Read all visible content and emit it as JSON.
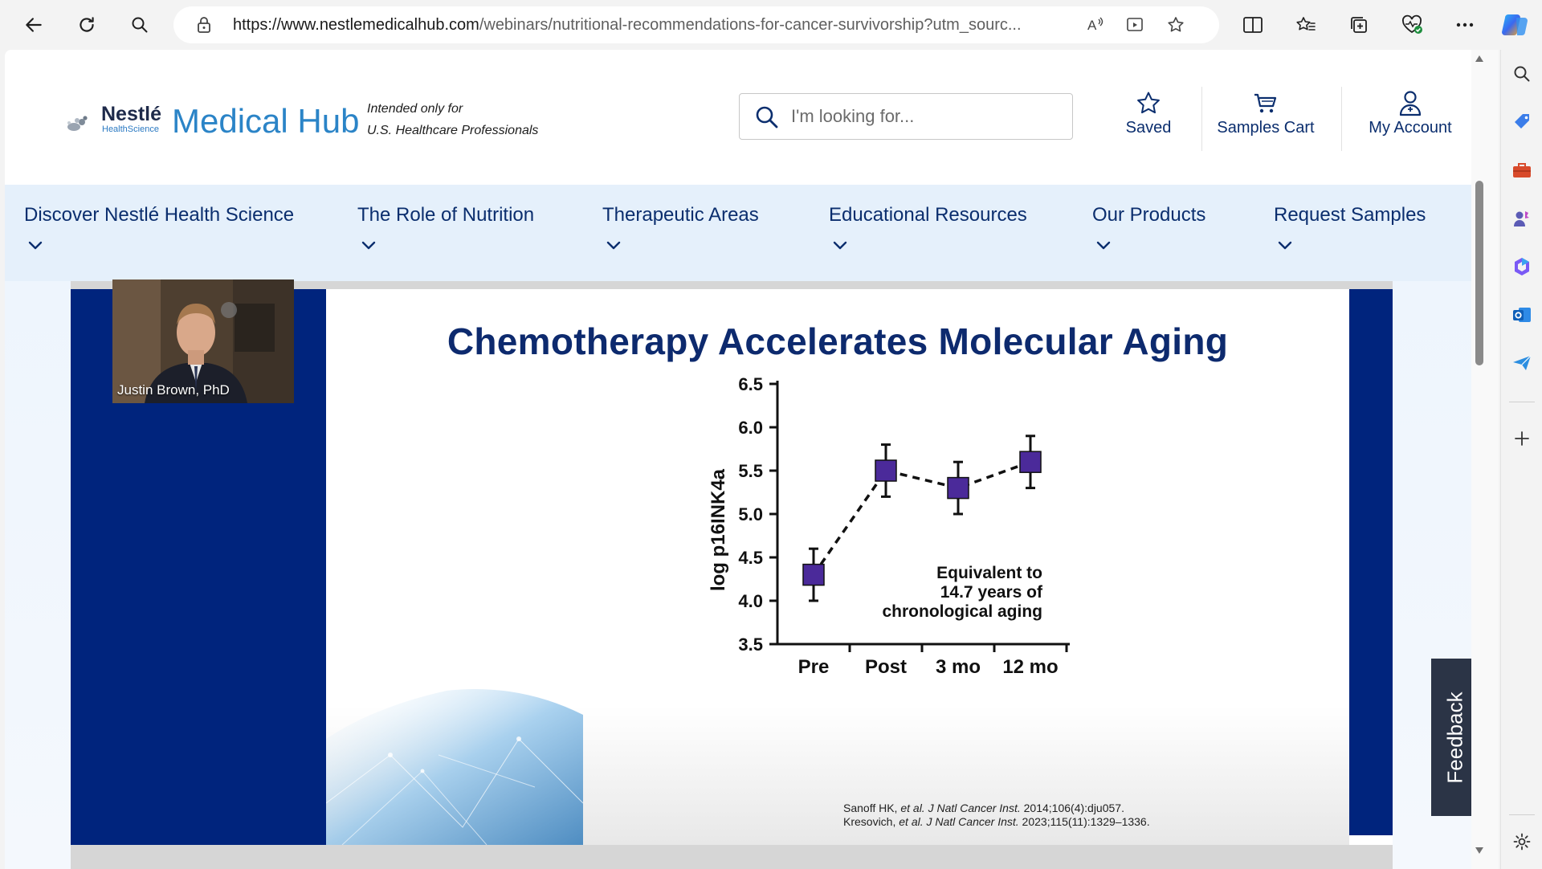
{
  "browser": {
    "url_domain": "https://www.nestlemedicalhub.com",
    "url_path": "/webinars/nutritional-recommendations-for-cancer-survivorship?utm_sourc..."
  },
  "header": {
    "logo_brand": "Nestlé",
    "logo_sub": "HealthScience",
    "logo_title": "Medical Hub",
    "intended_line1": "Intended only for",
    "intended_line2": "U.S. Healthcare Professionals",
    "search_placeholder": "I'm looking for...",
    "actions": {
      "saved": "Saved",
      "cart": "Samples Cart",
      "account": "My Account"
    }
  },
  "nav": {
    "items": [
      "Discover Nestlé Health Science",
      "The Role of Nutrition",
      "Therapeutic Areas",
      "Educational Resources",
      "Our Products",
      "Request Samples"
    ]
  },
  "video": {
    "presenter_name": "Justin Brown, PhD",
    "slide_title": "Chemotherapy Accelerates Molecular Aging",
    "annotation": [
      "Equivalent to",
      "14.7 years of",
      "chronological aging"
    ],
    "citation_1": [
      "Sanoff HK, ",
      "et al. J Natl Cancer Inst.",
      " 2014;106(4):dju057."
    ],
    "citation_2": [
      "Kresovich, ",
      "et al. J Natl Cancer Inst.",
      " 2023;115(11):1329–1336."
    ]
  },
  "chart_data": {
    "type": "line",
    "categories": [
      "Pre",
      "Post",
      "3 mo",
      "12 mo"
    ],
    "values": [
      4.3,
      5.5,
      5.3,
      5.6
    ],
    "error_low": [
      4.0,
      5.2,
      5.0,
      5.3
    ],
    "error_high": [
      4.6,
      5.8,
      5.6,
      5.9
    ],
    "ylabel": "log p16INK4a",
    "yticks": [
      "3.5",
      "4.0",
      "4.5",
      "5.0",
      "5.5",
      "6.0",
      "6.5"
    ],
    "ylim": [
      3.5,
      6.5
    ],
    "marker_color": "#4b2a9a",
    "line_style": "dashed"
  },
  "feedback_label": "Feedback"
}
